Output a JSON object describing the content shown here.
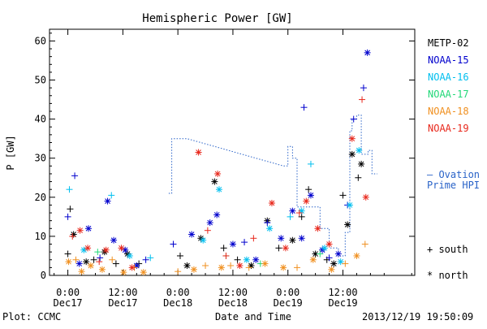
{
  "chart_data": {
    "type": "scatter",
    "title": "Hemispheric Power [GW]",
    "xlabel": "Date and Time",
    "ylabel": "P [GW]",
    "ylim": [
      0,
      63
    ],
    "xlim": [
      "2013-12-16T20:00",
      "2013-12-20T03:40"
    ],
    "yticks": [
      0,
      10,
      20,
      30,
      40,
      50,
      60
    ],
    "xticks": [
      {
        "time": "2013-12-17T00:00",
        "line1": "0:00",
        "line2": "Dec17"
      },
      {
        "time": "2013-12-17T12:00",
        "line1": "12:00",
        "line2": "Dec17"
      },
      {
        "time": "2013-12-18T00:00",
        "line1": "0:00",
        "line2": "Dec18"
      },
      {
        "time": "2013-12-18T12:00",
        "line1": "12:00",
        "line2": "Dec18"
      },
      {
        "time": "2013-12-19T00:00",
        "line1": "0:00",
        "line2": "Dec19"
      },
      {
        "time": "2013-12-19T12:00",
        "line1": "12:00",
        "line2": "Dec19"
      }
    ],
    "grid": false,
    "legend_position": "right",
    "markers": {
      "south": "+",
      "north": "*"
    },
    "marker_legend": [
      {
        "symbol": "+",
        "label": "south"
      },
      {
        "symbol": "*",
        "label": "north"
      }
    ],
    "series": [
      {
        "name": "METP-02",
        "color": "#000000",
        "points": [
          [
            "2013-12-17T00:00",
            5.5,
            "+"
          ],
          [
            "2013-12-17T00:30",
            17,
            "+"
          ],
          [
            "2013-12-17T01:15",
            10.5,
            "*"
          ],
          [
            "2013-12-17T04:00",
            3.5,
            "*"
          ],
          [
            "2013-12-17T05:40",
            4,
            "+"
          ],
          [
            "2013-12-17T08:00",
            6,
            "*"
          ],
          [
            "2013-12-17T10:30",
            3,
            "+"
          ],
          [
            "2013-12-17T13:00",
            5.5,
            "*"
          ],
          [
            "2013-12-17T15:30",
            3,
            "+"
          ],
          [
            "2013-12-18T00:30",
            5,
            "+"
          ],
          [
            "2013-12-18T02:00",
            2.5,
            "*"
          ],
          [
            "2013-12-18T05:00",
            9.5,
            "*"
          ],
          [
            "2013-12-18T08:00",
            24,
            "*"
          ],
          [
            "2013-12-18T10:00",
            7,
            "+"
          ],
          [
            "2013-12-18T13:00",
            4,
            "+"
          ],
          [
            "2013-12-18T16:00",
            2.5,
            "*"
          ],
          [
            "2013-12-18T19:30",
            14,
            "*"
          ],
          [
            "2013-12-18T22:00",
            7,
            "+"
          ],
          [
            "2013-12-19T01:00",
            9,
            "*"
          ],
          [
            "2013-12-19T03:00",
            15,
            "+"
          ],
          [
            "2013-12-19T04:30",
            22,
            "+"
          ],
          [
            "2013-12-19T06:00",
            5.5,
            "*"
          ],
          [
            "2013-12-19T08:30",
            4,
            "+"
          ],
          [
            "2013-12-19T10:00",
            3,
            "*"
          ],
          [
            "2013-12-19T12:00",
            20.5,
            "+"
          ],
          [
            "2013-12-19T13:00",
            13,
            "*"
          ],
          [
            "2013-12-19T14:00",
            31,
            "*"
          ],
          [
            "2013-12-19T15:20",
            25,
            "+"
          ],
          [
            "2013-12-19T16:00",
            28.5,
            "*"
          ]
        ]
      },
      {
        "name": "NOAA-15",
        "color": "#0000cd",
        "points": [
          [
            "2013-12-17T00:00",
            15,
            "+"
          ],
          [
            "2013-12-17T01:30",
            25.5,
            "+"
          ],
          [
            "2013-12-17T02:30",
            3,
            "*"
          ],
          [
            "2013-12-17T04:30",
            12,
            "*"
          ],
          [
            "2013-12-17T07:00",
            4.5,
            "+"
          ],
          [
            "2013-12-17T08:40",
            19,
            "*"
          ],
          [
            "2013-12-17T10:00",
            9,
            "*"
          ],
          [
            "2013-12-17T12:30",
            6.5,
            "*"
          ],
          [
            "2013-12-17T15:00",
            2.5,
            "*"
          ],
          [
            "2013-12-17T17:00",
            4,
            "+"
          ],
          [
            "2013-12-17T23:00",
            8,
            "+"
          ],
          [
            "2013-12-18T03:00",
            10.5,
            "*"
          ],
          [
            "2013-12-18T07:00",
            13.5,
            "*"
          ],
          [
            "2013-12-18T08:30",
            15.5,
            "*"
          ],
          [
            "2013-12-18T12:00",
            8,
            "*"
          ],
          [
            "2013-12-18T14:30",
            8.5,
            "+"
          ],
          [
            "2013-12-18T17:00",
            4,
            "*"
          ],
          [
            "2013-12-18T19:30",
            13.5,
            "+"
          ],
          [
            "2013-12-18T22:30",
            9.5,
            "*"
          ],
          [
            "2013-12-19T01:00",
            16.5,
            "*"
          ],
          [
            "2013-12-19T03:00",
            9.5,
            "*"
          ],
          [
            "2013-12-19T03:30",
            43,
            "+"
          ],
          [
            "2013-12-19T05:00",
            20.5,
            "*"
          ],
          [
            "2013-12-19T07:30",
            6.5,
            "*"
          ],
          [
            "2013-12-19T09:00",
            4.5,
            "+"
          ],
          [
            "2013-12-19T11:00",
            5.5,
            "*"
          ],
          [
            "2013-12-19T13:00",
            18,
            "+"
          ],
          [
            "2013-12-19T14:20",
            40,
            "+"
          ],
          [
            "2013-12-19T16:30",
            48,
            "+"
          ],
          [
            "2013-12-19T17:20",
            57,
            "*"
          ]
        ]
      },
      {
        "name": "NOAA-16",
        "color": "#00bfef",
        "points": [
          [
            "2013-12-17T00:20",
            22,
            "+"
          ],
          [
            "2013-12-17T03:30",
            6.5,
            "*"
          ],
          [
            "2013-12-17T09:30",
            20.5,
            "+"
          ],
          [
            "2013-12-17T13:30",
            5,
            "*"
          ],
          [
            "2013-12-17T18:00",
            4.5,
            "+"
          ],
          [
            "2013-12-18T05:30",
            9,
            "*"
          ],
          [
            "2013-12-18T09:00",
            22,
            "*"
          ],
          [
            "2013-12-18T15:00",
            4,
            "*"
          ],
          [
            "2013-12-18T20:00",
            12,
            "*"
          ],
          [
            "2013-12-19T00:30",
            15,
            "+"
          ],
          [
            "2013-12-19T03:00",
            16.5,
            "*"
          ],
          [
            "2013-12-19T05:00",
            28.5,
            "+"
          ],
          [
            "2013-12-19T08:00",
            7,
            "*"
          ],
          [
            "2013-12-19T11:30",
            3.5,
            "*"
          ],
          [
            "2013-12-19T13:30",
            18,
            "*"
          ],
          [
            "2013-12-19T15:30",
            32,
            "*"
          ]
        ]
      },
      {
        "name": "NOAA-17",
        "color": "#22d878",
        "points": [
          [
            "2013-12-17T06:30",
            6,
            "+"
          ],
          [
            "2013-12-18T10:30",
            5,
            "+"
          ],
          [
            "2013-12-18T18:00",
            3,
            "+"
          ],
          [
            "2013-12-19T07:00",
            5.5,
            "+"
          ]
        ]
      },
      {
        "name": "NOAA-18",
        "color": "#f09020",
        "points": [
          [
            "2013-12-17T00:10",
            3.5,
            "*"
          ],
          [
            "2013-12-17T01:45",
            4,
            "+"
          ],
          [
            "2013-12-17T03:00",
            1,
            "*"
          ],
          [
            "2013-12-17T05:00",
            2.5,
            "*"
          ],
          [
            "2013-12-17T07:30",
            1.5,
            "*"
          ],
          [
            "2013-12-17T09:40",
            4,
            "+"
          ],
          [
            "2013-12-17T12:10",
            0.8,
            "*"
          ],
          [
            "2013-12-17T14:30",
            2,
            "+"
          ],
          [
            "2013-12-17T16:30",
            0.8,
            "*"
          ],
          [
            "2013-12-18T00:00",
            1,
            "+"
          ],
          [
            "2013-12-18T03:30",
            1.5,
            "*"
          ],
          [
            "2013-12-18T06:00",
            2.5,
            "+"
          ],
          [
            "2013-12-18T09:30",
            2,
            "*"
          ],
          [
            "2013-12-18T11:30",
            2.5,
            "+"
          ],
          [
            "2013-12-18T15:30",
            2,
            "+"
          ],
          [
            "2013-12-18T19:00",
            3,
            "*"
          ],
          [
            "2013-12-18T23:00",
            2,
            "*"
          ],
          [
            "2013-12-19T02:00",
            2,
            "+"
          ],
          [
            "2013-12-19T05:30",
            4,
            "*"
          ],
          [
            "2013-12-19T09:30",
            1.5,
            "*"
          ],
          [
            "2013-12-19T12:30",
            3,
            "+"
          ],
          [
            "2013-12-19T15:00",
            5,
            "*"
          ],
          [
            "2013-12-19T16:50",
            8,
            "+"
          ]
        ]
      },
      {
        "name": "NOAA-19",
        "color": "#e8281c",
        "points": [
          [
            "2013-12-17T01:00",
            10,
            "+"
          ],
          [
            "2013-12-17T02:40",
            11.5,
            "*"
          ],
          [
            "2013-12-17T04:20",
            7,
            "*"
          ],
          [
            "2013-12-17T06:50",
            3.5,
            "+"
          ],
          [
            "2013-12-17T08:20",
            6.5,
            "*"
          ],
          [
            "2013-12-17T11:40",
            7,
            "*"
          ],
          [
            "2013-12-17T14:00",
            2,
            "*"
          ],
          [
            "2013-12-18T04:30",
            31.5,
            "*"
          ],
          [
            "2013-12-18T06:30",
            11.5,
            "+"
          ],
          [
            "2013-12-18T08:40",
            26,
            "*"
          ],
          [
            "2013-12-18T10:30",
            5,
            "+"
          ],
          [
            "2013-12-18T13:30",
            2.5,
            "*"
          ],
          [
            "2013-12-18T16:30",
            9.5,
            "+"
          ],
          [
            "2013-12-18T20:30",
            18.5,
            "*"
          ],
          [
            "2013-12-18T23:30",
            7,
            "*"
          ],
          [
            "2013-12-19T02:30",
            16,
            "+"
          ],
          [
            "2013-12-19T04:00",
            19,
            "*"
          ],
          [
            "2013-12-19T06:30",
            12,
            "*"
          ],
          [
            "2013-12-19T09:00",
            8,
            "*"
          ],
          [
            "2013-12-19T14:00",
            35,
            "*"
          ],
          [
            "2013-12-19T16:10",
            45,
            "+"
          ],
          [
            "2013-12-19T17:00",
            20,
            "*"
          ]
        ]
      }
    ],
    "ovation": {
      "name": "Ovation Prime HPI",
      "color": "#2a63c8",
      "style": "dotted",
      "points": [
        [
          "2013-12-17T22:00",
          21
        ],
        [
          "2013-12-17T22:40",
          21
        ],
        [
          "2013-12-17T22:40",
          35
        ],
        [
          "2013-12-18T02:00",
          35
        ],
        [
          "2013-12-18T23:00",
          28
        ],
        [
          "2013-12-19T00:00",
          28
        ],
        [
          "2013-12-19T00:00",
          33
        ],
        [
          "2013-12-19T01:00",
          33
        ],
        [
          "2013-12-19T01:00",
          30
        ],
        [
          "2013-12-19T02:00",
          30
        ],
        [
          "2013-12-19T02:00",
          17.5
        ],
        [
          "2013-12-19T07:00",
          17.5
        ],
        [
          "2013-12-19T07:00",
          12
        ],
        [
          "2013-12-19T09:00",
          12
        ],
        [
          "2013-12-19T09:00",
          7
        ],
        [
          "2013-12-19T11:00",
          7
        ],
        [
          "2013-12-19T11:00",
          5
        ],
        [
          "2013-12-19T12:30",
          5
        ],
        [
          "2013-12-19T12:30",
          11
        ],
        [
          "2013-12-19T13:30",
          11
        ],
        [
          "2013-12-19T13:30",
          37
        ],
        [
          "2013-12-19T14:00",
          37
        ],
        [
          "2013-12-19T14:00",
          40
        ],
        [
          "2013-12-19T15:00",
          40
        ],
        [
          "2013-12-19T15:00",
          41
        ],
        [
          "2013-12-19T16:00",
          41
        ],
        [
          "2013-12-19T16:00",
          31
        ],
        [
          "2013-12-19T17:30",
          31
        ],
        [
          "2013-12-19T17:30",
          32
        ],
        [
          "2013-12-19T18:20",
          32
        ],
        [
          "2013-12-19T18:20",
          26
        ],
        [
          "2013-12-19T19:30",
          26
        ]
      ]
    }
  },
  "footer": {
    "plot_credit": "Plot: CCMC",
    "timestamp": "2013/12/19 19:50:09"
  },
  "ovation_label": {
    "line1": "— Ovation",
    "line2": "Prime HPI"
  }
}
